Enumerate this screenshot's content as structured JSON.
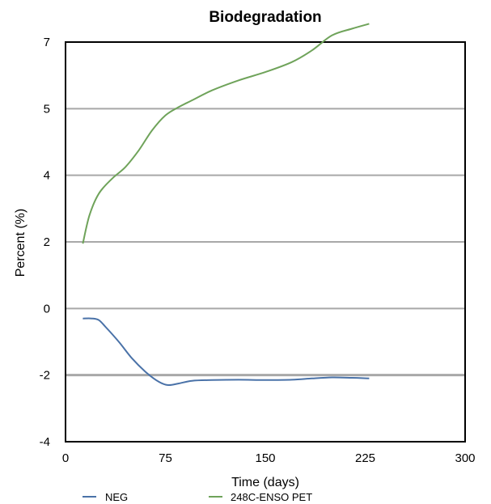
{
  "chart_data": {
    "type": "line",
    "title": "Biodegradation",
    "xlabel": "Time (days)",
    "ylabel": "Percent (%)",
    "x_ticks": [
      0,
      75,
      150,
      225,
      300
    ],
    "x_tick_labels": [
      "0",
      "75",
      "150",
      "225",
      "300"
    ],
    "y_tick_labels": [
      "-4",
      "-2",
      "0",
      "2",
      "4",
      "5",
      "7"
    ],
    "xlim": [
      0,
      300
    ],
    "grid": "horizontal",
    "legend_position": "bottom",
    "series": [
      {
        "name": "NEG",
        "color": "#4a72a8",
        "x": [
          13,
          20,
          25,
          30,
          40,
          50,
          60,
          70,
          77,
          85,
          95,
          110,
          130,
          150,
          170,
          185,
          200,
          215,
          228
        ],
        "y": [
          -0.3,
          -0.3,
          -0.35,
          -0.55,
          -1.0,
          -1.5,
          -1.9,
          -2.2,
          -2.3,
          -2.25,
          -2.17,
          -2.15,
          -2.14,
          -2.15,
          -2.14,
          -2.1,
          -2.07,
          -2.08,
          -2.1
        ]
      },
      {
        "name": "248C-ENSO PET",
        "color": "#6fa35a",
        "x": [
          13,
          18,
          25,
          35,
          45,
          55,
          65,
          75,
          85,
          95,
          110,
          130,
          150,
          170,
          185,
          200,
          215,
          228
        ],
        "y": [
          1.95,
          2.8,
          3.45,
          3.9,
          4.25,
          4.75,
          5.35,
          5.8,
          6.05,
          6.25,
          6.55,
          6.85,
          7.1,
          7.4,
          7.75,
          8.2,
          8.4,
          8.55
        ]
      }
    ]
  }
}
